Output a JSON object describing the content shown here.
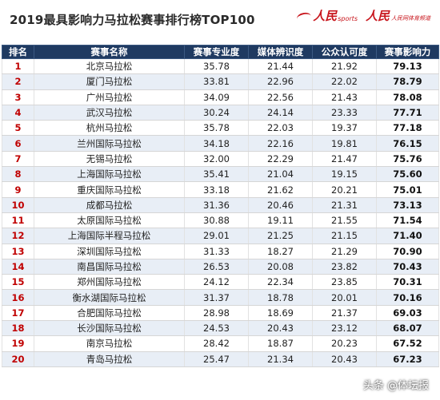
{
  "title": "2019最具影响力马拉松赛事排行榜TOP100",
  "logo": {
    "chars": "人民",
    "sub": "sports",
    "url": "人民网体育频道"
  },
  "headers": [
    "排名",
    "赛事名称",
    "赛事专业度",
    "媒体辨识度",
    "公众认可度",
    "赛事影响力"
  ],
  "rows": [
    {
      "rank": "1",
      "name": "北京马拉松",
      "pro": "35.78",
      "media": "21.44",
      "public": "21.92",
      "impact": "79.13"
    },
    {
      "rank": "2",
      "name": "厦门马拉松",
      "pro": "33.81",
      "media": "22.96",
      "public": "22.02",
      "impact": "78.79"
    },
    {
      "rank": "3",
      "name": "广州马拉松",
      "pro": "34.09",
      "media": "22.56",
      "public": "21.43",
      "impact": "78.08"
    },
    {
      "rank": "4",
      "name": "武汉马拉松",
      "pro": "30.24",
      "media": "24.14",
      "public": "23.33",
      "impact": "77.71"
    },
    {
      "rank": "5",
      "name": "杭州马拉松",
      "pro": "35.78",
      "media": "22.03",
      "public": "19.37",
      "impact": "77.18"
    },
    {
      "rank": "6",
      "name": "兰州国际马拉松",
      "pro": "34.18",
      "media": "22.16",
      "public": "19.81",
      "impact": "76.15"
    },
    {
      "rank": "7",
      "name": "无锡马拉松",
      "pro": "32.00",
      "media": "22.29",
      "public": "21.47",
      "impact": "75.76"
    },
    {
      "rank": "8",
      "name": "上海国际马拉松",
      "pro": "35.41",
      "media": "21.04",
      "public": "19.15",
      "impact": "75.60"
    },
    {
      "rank": "9",
      "name": "重庆国际马拉松",
      "pro": "33.18",
      "media": "21.62",
      "public": "20.21",
      "impact": "75.01"
    },
    {
      "rank": "10",
      "name": "成都马拉松",
      "pro": "31.36",
      "media": "20.46",
      "public": "21.31",
      "impact": "73.13"
    },
    {
      "rank": "11",
      "name": "太原国际马拉松",
      "pro": "30.88",
      "media": "19.11",
      "public": "21.55",
      "impact": "71.54"
    },
    {
      "rank": "12",
      "name": "上海国际半程马拉松",
      "pro": "29.01",
      "media": "21.25",
      "public": "21.15",
      "impact": "71.40"
    },
    {
      "rank": "13",
      "name": "深圳国际马拉松",
      "pro": "31.33",
      "media": "18.27",
      "public": "21.29",
      "impact": "70.90"
    },
    {
      "rank": "14",
      "name": "南昌国际马拉松",
      "pro": "26.53",
      "media": "20.08",
      "public": "23.82",
      "impact": "70.43"
    },
    {
      "rank": "15",
      "name": "郑州国际马拉松",
      "pro": "24.12",
      "media": "22.34",
      "public": "23.85",
      "impact": "70.31"
    },
    {
      "rank": "16",
      "name": "衡水湖国际马拉松",
      "pro": "31.37",
      "media": "18.78",
      "public": "20.01",
      "impact": "70.16"
    },
    {
      "rank": "17",
      "name": "合肥国际马拉松",
      "pro": "28.98",
      "media": "18.69",
      "public": "21.37",
      "impact": "69.03"
    },
    {
      "rank": "18",
      "name": "长沙国际马拉松",
      "pro": "24.53",
      "media": "20.43",
      "public": "23.12",
      "impact": "68.07"
    },
    {
      "rank": "19",
      "name": "南京马拉松",
      "pro": "28.42",
      "media": "18.87",
      "public": "20.23",
      "impact": "67.52"
    },
    {
      "rank": "20",
      "name": "青岛马拉松",
      "pro": "25.47",
      "media": "21.34",
      "public": "20.43",
      "impact": "67.23"
    }
  ],
  "watermark": "头条 @体坛报"
}
